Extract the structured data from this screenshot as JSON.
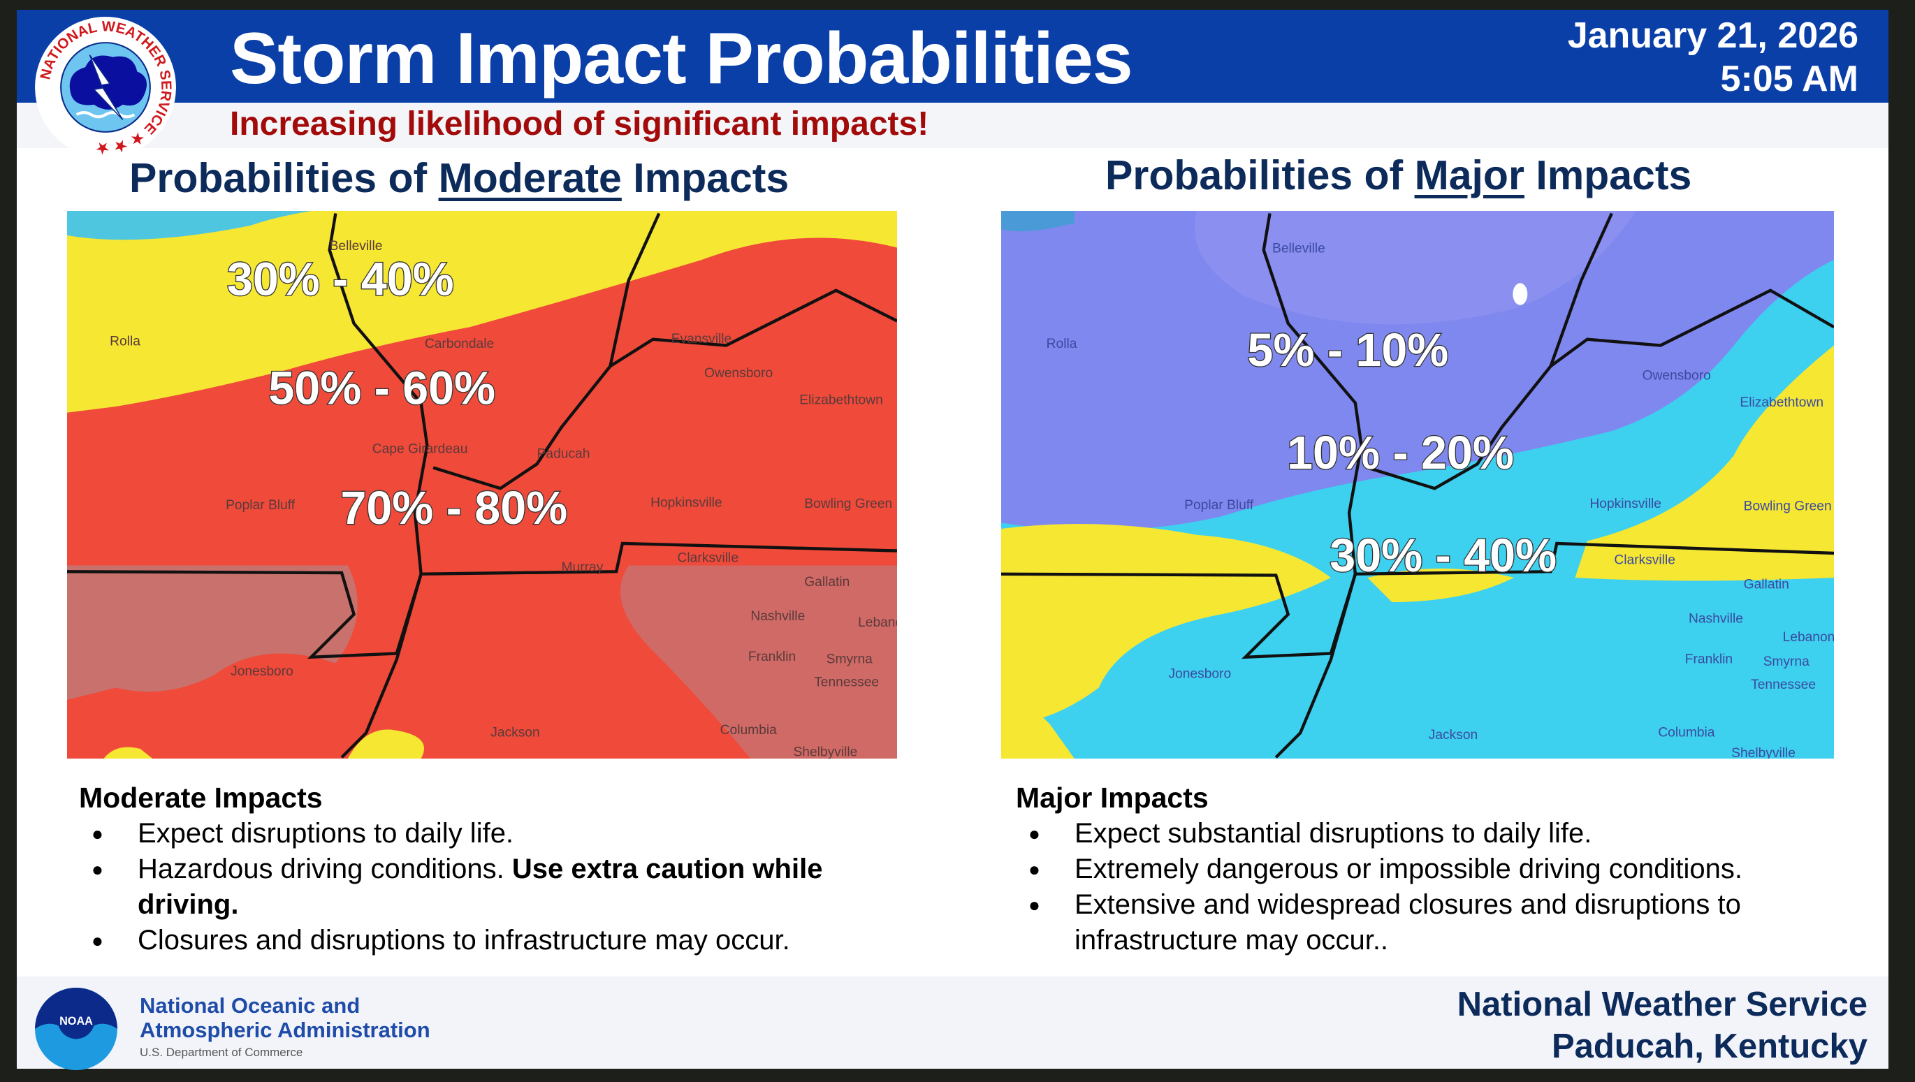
{
  "header": {
    "title": "Storm Impact Probabilities",
    "date": "January 21, 2026",
    "time": "5:05 AM",
    "subtitle": "Increasing likelihood of significant impacts!",
    "logo_text": "NATIONAL WEATHER SERVICE"
  },
  "moderate": {
    "heading_pre": "Probabilities of ",
    "heading_em": "Moderate",
    "heading_post": " Impacts",
    "ranges": [
      "30% - 40%",
      "50% -  60%",
      "70% - 80%"
    ],
    "cities": [
      "Belleville",
      "Rolla",
      "Carbondale",
      "Owensboro",
      "Cape Girardeau",
      "Paducah",
      "Poplar Bluff",
      "Hopkinsville",
      "Bowling Green",
      "Murray",
      "Clarksville",
      "Gallatin",
      "Nashville",
      "Lebanon",
      "Franklin",
      "Smyrna",
      "Tennessee",
      "Jonesboro",
      "Jackson",
      "Columbia",
      "Shelbyville",
      "Evansville",
      "Elizabethtown"
    ],
    "desc_title": "Moderate Impacts",
    "bullets": [
      {
        "text": "Expect disruptions to daily life.",
        "bold": ""
      },
      {
        "text": "Hazardous driving conditions. ",
        "bold": "Use extra caution while driving."
      },
      {
        "text": "Closures and disruptions to infrastructure may occur.",
        "bold": ""
      }
    ]
  },
  "major": {
    "heading_pre": "Probabilities of ",
    "heading_em": "Major",
    "heading_post": " Impacts",
    "ranges": [
      "5% - 10%",
      "10% -  20%",
      "30% - 40%"
    ],
    "cities": [
      "Belleville",
      "Rolla",
      "Owensboro",
      "Elizabethtown",
      "Poplar Bluff",
      "Hopkinsville",
      "Bowling Green",
      "Clarksville",
      "Gallatin",
      "Nashville",
      "Lebanon",
      "Franklin",
      "Smyrna",
      "Tennessee",
      "Jonesboro",
      "Jackson",
      "Columbia",
      "Shelbyville"
    ],
    "desc_title": "Major Impacts",
    "bullets": [
      {
        "text": "Expect substantial disruptions to daily life."
      },
      {
        "text": "Extremely dangerous or impossible driving conditions."
      },
      {
        "text": "Extensive and widespread closures and disruptions to infrastructure may occur.."
      }
    ]
  },
  "footer": {
    "noaa_line1": "National Oceanic and",
    "noaa_line2": "Atmospheric Administration",
    "noaa_dept": "U.S. Department of Commerce",
    "noaa_logo": "NOAA",
    "office_line1": "National Weather Service",
    "office_line2": "Paducah, Kentucky"
  },
  "colors": {
    "header_blue": "#0b3fa8",
    "alert_red": "#a30a0a",
    "heading_navy": "#0c2a5a",
    "moderate_red": "#ef4a3a",
    "yellow": "#f6e733",
    "major_violet": "#7f88ee",
    "major_cyan": "#3dd0ef"
  }
}
